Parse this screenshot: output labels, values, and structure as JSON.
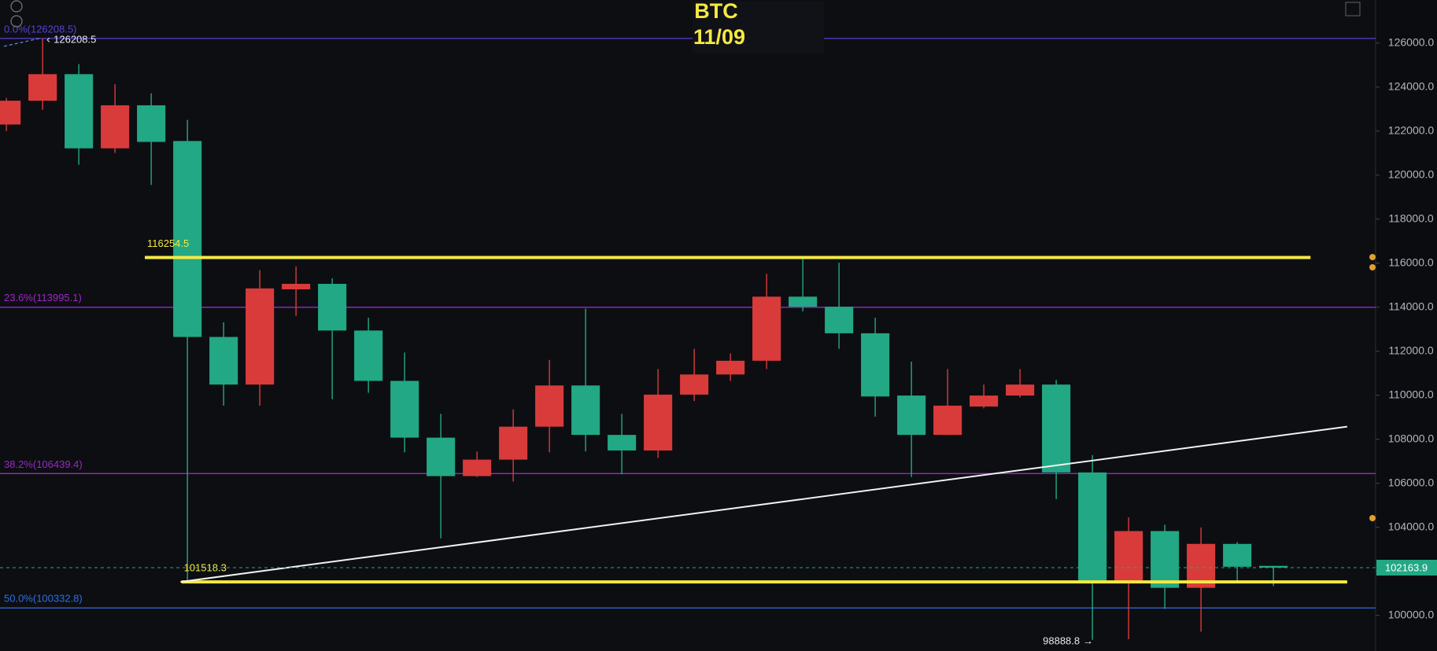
{
  "chart_data": {
    "type": "candlestick",
    "title": "BTC",
    "subtitle": "11/09",
    "up_color": "#d93b3b",
    "down_color": "#22a884",
    "open": [
      122298,
      123379,
      124586,
      121216,
      123171,
      121549,
      112646,
      110483,
      114810,
      115059,
      112938,
      110650,
      108071,
      106324,
      107072,
      108570,
      110442,
      108196,
      107488,
      110026,
      110941,
      111565,
      114477,
      114019,
      112813,
      109984,
      108196,
      109485,
      109984,
      110483,
      106490,
      101498,
      103827,
      101248,
      103245,
      102246
    ],
    "high": [
      123500,
      126208.5,
      125043,
      124128,
      123712,
      122506,
      113312,
      115683,
      115850,
      115309,
      113520,
      111939,
      109152,
      107446,
      109360,
      111606,
      113936,
      109152,
      111190,
      112106,
      111898,
      115517,
      116307,
      116016,
      113520,
      111523,
      111190,
      110483,
      111190,
      110691,
      107278,
      104451,
      104118,
      103994,
      103328,
      102246
    ],
    "low": [
      122000,
      122963,
      120467,
      121008,
      119552,
      101518.3,
      109526,
      109526,
      113603,
      109818,
      110109,
      107405,
      103494,
      106282,
      106074,
      107405,
      107446,
      106406,
      107155,
      109734,
      110650,
      111190,
      113811,
      112106,
      109027,
      106282,
      108196,
      109402,
      109900,
      105283,
      98888.8,
      98918,
      100291,
      99251,
      101581,
      101331
    ],
    "close": [
      123379,
      124586,
      121216,
      123171,
      121507,
      112646,
      110483,
      114851,
      115059,
      112938,
      110650,
      108071,
      106324,
      107072,
      108570,
      110442,
      108196,
      107488,
      110026,
      110941,
      111565,
      114477,
      114019,
      112813,
      109942,
      108196,
      109526,
      109984,
      110483,
      106490,
      101518,
      103827,
      101248,
      103245,
      102205,
      102163.9
    ],
    "ylim": [
      98378,
      127955
    ],
    "yticks": [
      {
        "value": 100000,
        "label": "100000.0"
      },
      {
        "value": 102000,
        "label": "102000.0"
      },
      {
        "value": 104000,
        "label": "104000.0"
      },
      {
        "value": 106000,
        "label": "106000.0"
      },
      {
        "value": 108000,
        "label": "108000.0"
      },
      {
        "value": 110000,
        "label": "110000.0"
      },
      {
        "value": 112000,
        "label": "112000.0"
      },
      {
        "value": 114000,
        "label": "114000.0"
      },
      {
        "value": 116000,
        "label": "116000.0"
      },
      {
        "value": 118000,
        "label": "118000.0"
      },
      {
        "value": 120000,
        "label": "120000.0"
      },
      {
        "value": 122000,
        "label": "122000.0"
      },
      {
        "value": 124000,
        "label": "124000.0"
      },
      {
        "value": 126000,
        "label": "126000.0"
      }
    ],
    "fib_levels": [
      {
        "value": 126208.5,
        "label": "0.0%(126208.5)",
        "color": "#5b3fd6"
      },
      {
        "value": 113995.1,
        "label": "23.6%(113995.1)",
        "color": "#9b27c9"
      },
      {
        "value": 106439.4,
        "label": "38.2%(106439.4)",
        "color": "#9b27c9"
      },
      {
        "value": 100332.8,
        "label": "50.0%(100332.8)",
        "color": "#2e6fe0"
      }
    ],
    "levels": [
      116254.5,
      101518.3
    ],
    "level_color": "#f5e943",
    "trendline": {
      "start": 101518.3,
      "end": 108571,
      "color": "#f2f2f2"
    }
  }
}
